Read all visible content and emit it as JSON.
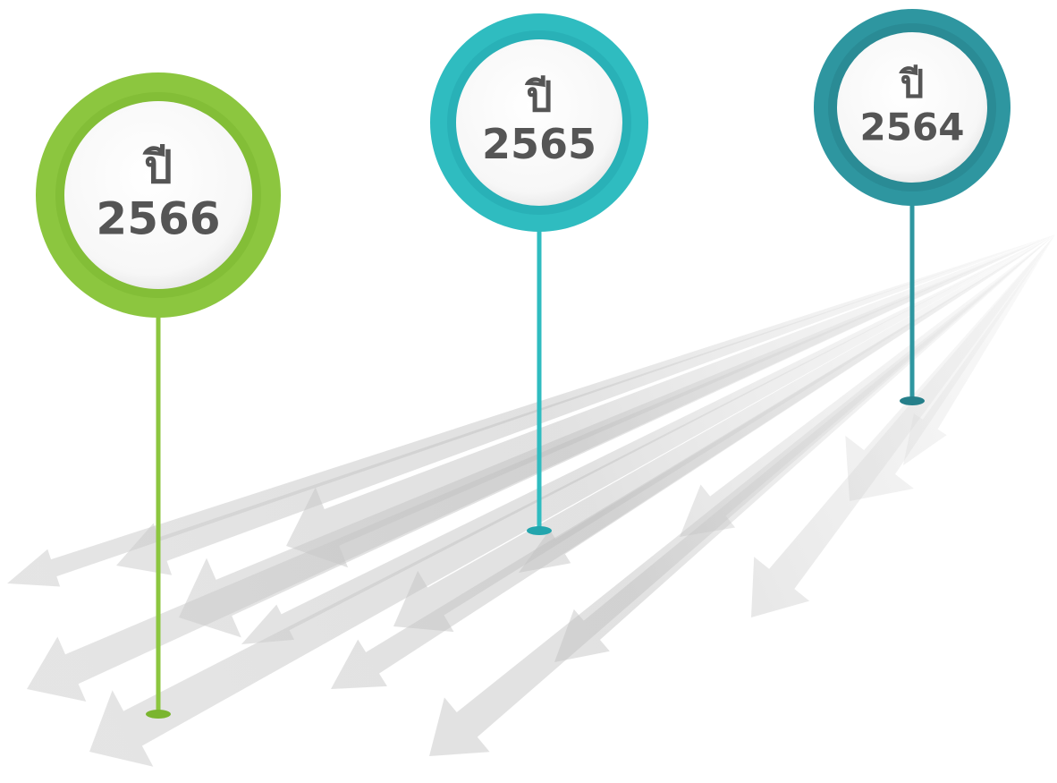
{
  "pins": [
    {
      "label": "ปี",
      "year": "2566"
    },
    {
      "label": "ปี",
      "year": "2565"
    },
    {
      "label": "ปี",
      "year": "2564"
    }
  ]
}
